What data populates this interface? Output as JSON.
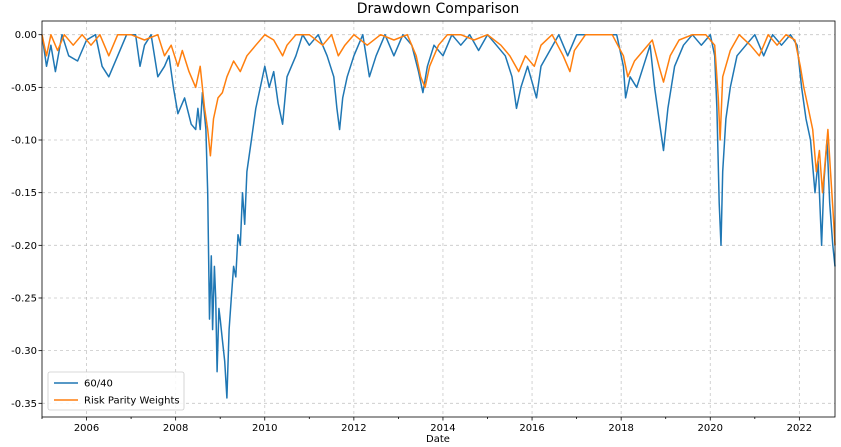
{
  "chart_data": {
    "type": "line",
    "title": "Drawdown Comparison",
    "xlabel": "Date",
    "ylabel": "",
    "xlim": [
      2005.0,
      2022.8
    ],
    "ylim": [
      -0.363,
      0.013
    ],
    "x_ticks": [
      2006,
      2008,
      2010,
      2012,
      2014,
      2016,
      2018,
      2020,
      2022
    ],
    "x_tick_labels": [
      "2006",
      "2008",
      "2010",
      "2012",
      "2014",
      "2016",
      "2018",
      "2020",
      "2022"
    ],
    "y_ticks": [
      0.0,
      -0.05,
      -0.1,
      -0.15,
      -0.2,
      -0.25,
      -0.3,
      -0.35
    ],
    "y_tick_labels": [
      "0.00",
      "-0.05",
      "-0.10",
      "-0.15",
      "-0.20",
      "-0.25",
      "-0.30",
      "-0.35"
    ],
    "grid": true,
    "legend_position": "lower-left",
    "series": [
      {
        "name": "60/40",
        "color": "#1f77b4",
        "points": [
          [
            2005.0,
            0.0
          ],
          [
            2005.1,
            -0.03
          ],
          [
            2005.2,
            -0.01
          ],
          [
            2005.3,
            -0.035
          ],
          [
            2005.45,
            -0.0
          ],
          [
            2005.6,
            -0.02
          ],
          [
            2005.8,
            -0.025
          ],
          [
            2006.0,
            -0.005
          ],
          [
            2006.2,
            -0.0
          ],
          [
            2006.35,
            -0.03
          ],
          [
            2006.5,
            -0.04
          ],
          [
            2006.7,
            -0.02
          ],
          [
            2006.9,
            -0.0
          ],
          [
            2007.1,
            -0.0
          ],
          [
            2007.2,
            -0.03
          ],
          [
            2007.3,
            -0.01
          ],
          [
            2007.45,
            -0.0
          ],
          [
            2007.6,
            -0.04
          ],
          [
            2007.75,
            -0.03
          ],
          [
            2007.85,
            -0.02
          ],
          [
            2007.95,
            -0.05
          ],
          [
            2008.05,
            -0.075
          ],
          [
            2008.2,
            -0.06
          ],
          [
            2008.35,
            -0.085
          ],
          [
            2008.45,
            -0.09
          ],
          [
            2008.5,
            -0.07
          ],
          [
            2008.55,
            -0.09
          ],
          [
            2008.6,
            -0.055
          ],
          [
            2008.68,
            -0.09
          ],
          [
            2008.72,
            -0.15
          ],
          [
            2008.76,
            -0.27
          ],
          [
            2008.8,
            -0.21
          ],
          [
            2008.83,
            -0.28
          ],
          [
            2008.87,
            -0.22
          ],
          [
            2008.9,
            -0.25
          ],
          [
            2008.93,
            -0.32
          ],
          [
            2008.97,
            -0.26
          ],
          [
            2009.0,
            -0.27
          ],
          [
            2009.05,
            -0.29
          ],
          [
            2009.1,
            -0.31
          ],
          [
            2009.15,
            -0.345
          ],
          [
            2009.2,
            -0.28
          ],
          [
            2009.25,
            -0.25
          ],
          [
            2009.3,
            -0.22
          ],
          [
            2009.35,
            -0.23
          ],
          [
            2009.4,
            -0.19
          ],
          [
            2009.45,
            -0.2
          ],
          [
            2009.5,
            -0.15
          ],
          [
            2009.55,
            -0.18
          ],
          [
            2009.6,
            -0.13
          ],
          [
            2009.7,
            -0.1
          ],
          [
            2009.8,
            -0.07
          ],
          [
            2009.9,
            -0.05
          ],
          [
            2010.0,
            -0.03
          ],
          [
            2010.1,
            -0.05
          ],
          [
            2010.2,
            -0.035
          ],
          [
            2010.3,
            -0.065
          ],
          [
            2010.4,
            -0.085
          ],
          [
            2010.5,
            -0.04
          ],
          [
            2010.7,
            -0.02
          ],
          [
            2010.85,
            -0.0
          ],
          [
            2011.0,
            -0.01
          ],
          [
            2011.2,
            -0.0
          ],
          [
            2011.4,
            -0.02
          ],
          [
            2011.55,
            -0.04
          ],
          [
            2011.62,
            -0.07
          ],
          [
            2011.68,
            -0.09
          ],
          [
            2011.75,
            -0.06
          ],
          [
            2011.85,
            -0.04
          ],
          [
            2012.0,
            -0.02
          ],
          [
            2012.2,
            -0.0
          ],
          [
            2012.35,
            -0.04
          ],
          [
            2012.5,
            -0.02
          ],
          [
            2012.7,
            -0.0
          ],
          [
            2012.9,
            -0.02
          ],
          [
            2013.1,
            -0.0
          ],
          [
            2013.3,
            -0.01
          ],
          [
            2013.45,
            -0.035
          ],
          [
            2013.55,
            -0.055
          ],
          [
            2013.65,
            -0.03
          ],
          [
            2013.8,
            -0.01
          ],
          [
            2014.0,
            -0.02
          ],
          [
            2014.2,
            -0.0
          ],
          [
            2014.4,
            -0.01
          ],
          [
            2014.6,
            -0.0
          ],
          [
            2014.8,
            -0.015
          ],
          [
            2015.0,
            -0.0
          ],
          [
            2015.2,
            -0.01
          ],
          [
            2015.4,
            -0.02
          ],
          [
            2015.55,
            -0.04
          ],
          [
            2015.65,
            -0.07
          ],
          [
            2015.75,
            -0.05
          ],
          [
            2015.9,
            -0.03
          ],
          [
            2016.0,
            -0.045
          ],
          [
            2016.1,
            -0.06
          ],
          [
            2016.2,
            -0.03
          ],
          [
            2016.4,
            -0.015
          ],
          [
            2016.6,
            -0.0
          ],
          [
            2016.8,
            -0.02
          ],
          [
            2017.0,
            -0.0
          ],
          [
            2017.3,
            -0.0
          ],
          [
            2017.6,
            -0.0
          ],
          [
            2017.9,
            -0.0
          ],
          [
            2018.05,
            -0.03
          ],
          [
            2018.1,
            -0.06
          ],
          [
            2018.2,
            -0.04
          ],
          [
            2018.35,
            -0.05
          ],
          [
            2018.5,
            -0.03
          ],
          [
            2018.65,
            -0.01
          ],
          [
            2018.75,
            -0.05
          ],
          [
            2018.85,
            -0.08
          ],
          [
            2018.95,
            -0.11
          ],
          [
            2019.05,
            -0.07
          ],
          [
            2019.2,
            -0.03
          ],
          [
            2019.4,
            -0.01
          ],
          [
            2019.6,
            -0.0
          ],
          [
            2019.8,
            -0.01
          ],
          [
            2020.0,
            -0.0
          ],
          [
            2020.1,
            -0.02
          ],
          [
            2020.15,
            -0.07
          ],
          [
            2020.2,
            -0.16
          ],
          [
            2020.24,
            -0.2
          ],
          [
            2020.28,
            -0.13
          ],
          [
            2020.35,
            -0.08
          ],
          [
            2020.45,
            -0.05
          ],
          [
            2020.6,
            -0.02
          ],
          [
            2020.8,
            -0.01
          ],
          [
            2021.0,
            -0.0
          ],
          [
            2021.2,
            -0.02
          ],
          [
            2021.4,
            -0.0
          ],
          [
            2021.6,
            -0.01
          ],
          [
            2021.8,
            -0.0
          ],
          [
            2021.95,
            -0.01
          ],
          [
            2022.05,
            -0.05
          ],
          [
            2022.15,
            -0.08
          ],
          [
            2022.25,
            -0.1
          ],
          [
            2022.35,
            -0.15
          ],
          [
            2022.42,
            -0.12
          ],
          [
            2022.5,
            -0.2
          ],
          [
            2022.55,
            -0.14
          ],
          [
            2022.62,
            -0.1
          ],
          [
            2022.68,
            -0.16
          ],
          [
            2022.75,
            -0.2
          ],
          [
            2022.8,
            -0.22
          ]
        ]
      },
      {
        "name": "Risk Parity Weights",
        "color": "#ff7f0e",
        "points": [
          [
            2005.0,
            0.0
          ],
          [
            2005.1,
            -0.02
          ],
          [
            2005.2,
            -0.0
          ],
          [
            2005.35,
            -0.015
          ],
          [
            2005.5,
            -0.0
          ],
          [
            2005.7,
            -0.01
          ],
          [
            2005.9,
            -0.0
          ],
          [
            2006.1,
            -0.01
          ],
          [
            2006.3,
            -0.0
          ],
          [
            2006.5,
            -0.02
          ],
          [
            2006.7,
            -0.0
          ],
          [
            2007.0,
            -0.0
          ],
          [
            2007.3,
            -0.005
          ],
          [
            2007.6,
            -0.0
          ],
          [
            2007.75,
            -0.02
          ],
          [
            2007.9,
            -0.01
          ],
          [
            2008.05,
            -0.03
          ],
          [
            2008.15,
            -0.015
          ],
          [
            2008.3,
            -0.035
          ],
          [
            2008.45,
            -0.05
          ],
          [
            2008.55,
            -0.03
          ],
          [
            2008.65,
            -0.07
          ],
          [
            2008.72,
            -0.09
          ],
          [
            2008.78,
            -0.115
          ],
          [
            2008.85,
            -0.08
          ],
          [
            2008.95,
            -0.06
          ],
          [
            2009.05,
            -0.055
          ],
          [
            2009.15,
            -0.04
          ],
          [
            2009.3,
            -0.025
          ],
          [
            2009.45,
            -0.035
          ],
          [
            2009.6,
            -0.02
          ],
          [
            2009.8,
            -0.01
          ],
          [
            2010.0,
            -0.0
          ],
          [
            2010.2,
            -0.005
          ],
          [
            2010.4,
            -0.02
          ],
          [
            2010.5,
            -0.01
          ],
          [
            2010.7,
            -0.0
          ],
          [
            2011.0,
            -0.0
          ],
          [
            2011.3,
            -0.01
          ],
          [
            2011.5,
            -0.0
          ],
          [
            2011.65,
            -0.02
          ],
          [
            2011.8,
            -0.01
          ],
          [
            2012.0,
            -0.0
          ],
          [
            2012.3,
            -0.01
          ],
          [
            2012.6,
            -0.0
          ],
          [
            2012.9,
            -0.005
          ],
          [
            2013.2,
            -0.0
          ],
          [
            2013.4,
            -0.02
          ],
          [
            2013.5,
            -0.04
          ],
          [
            2013.6,
            -0.05
          ],
          [
            2013.7,
            -0.03
          ],
          [
            2013.9,
            -0.01
          ],
          [
            2014.1,
            -0.0
          ],
          [
            2014.4,
            -0.0
          ],
          [
            2014.7,
            -0.005
          ],
          [
            2015.0,
            -0.0
          ],
          [
            2015.3,
            -0.01
          ],
          [
            2015.5,
            -0.02
          ],
          [
            2015.7,
            -0.035
          ],
          [
            2015.85,
            -0.02
          ],
          [
            2016.05,
            -0.03
          ],
          [
            2016.2,
            -0.01
          ],
          [
            2016.45,
            -0.0
          ],
          [
            2016.7,
            -0.02
          ],
          [
            2016.85,
            -0.035
          ],
          [
            2016.95,
            -0.015
          ],
          [
            2017.2,
            -0.0
          ],
          [
            2017.5,
            -0.0
          ],
          [
            2017.8,
            -0.0
          ],
          [
            2018.05,
            -0.02
          ],
          [
            2018.15,
            -0.04
          ],
          [
            2018.3,
            -0.025
          ],
          [
            2018.5,
            -0.015
          ],
          [
            2018.7,
            -0.005
          ],
          [
            2018.85,
            -0.03
          ],
          [
            2018.95,
            -0.045
          ],
          [
            2019.1,
            -0.02
          ],
          [
            2019.3,
            -0.005
          ],
          [
            2019.6,
            -0.0
          ],
          [
            2019.9,
            -0.0
          ],
          [
            2020.1,
            -0.01
          ],
          [
            2020.18,
            -0.06
          ],
          [
            2020.22,
            -0.1
          ],
          [
            2020.28,
            -0.04
          ],
          [
            2020.45,
            -0.015
          ],
          [
            2020.65,
            -0.0
          ],
          [
            2020.9,
            -0.01
          ],
          [
            2021.1,
            -0.02
          ],
          [
            2021.3,
            -0.0
          ],
          [
            2021.5,
            -0.01
          ],
          [
            2021.7,
            -0.0
          ],
          [
            2021.9,
            -0.005
          ],
          [
            2022.02,
            -0.03
          ],
          [
            2022.1,
            -0.05
          ],
          [
            2022.2,
            -0.07
          ],
          [
            2022.3,
            -0.09
          ],
          [
            2022.38,
            -0.13
          ],
          [
            2022.45,
            -0.11
          ],
          [
            2022.52,
            -0.15
          ],
          [
            2022.58,
            -0.12
          ],
          [
            2022.64,
            -0.09
          ],
          [
            2022.7,
            -0.13
          ],
          [
            2022.76,
            -0.17
          ],
          [
            2022.8,
            -0.2
          ]
        ]
      }
    ]
  }
}
